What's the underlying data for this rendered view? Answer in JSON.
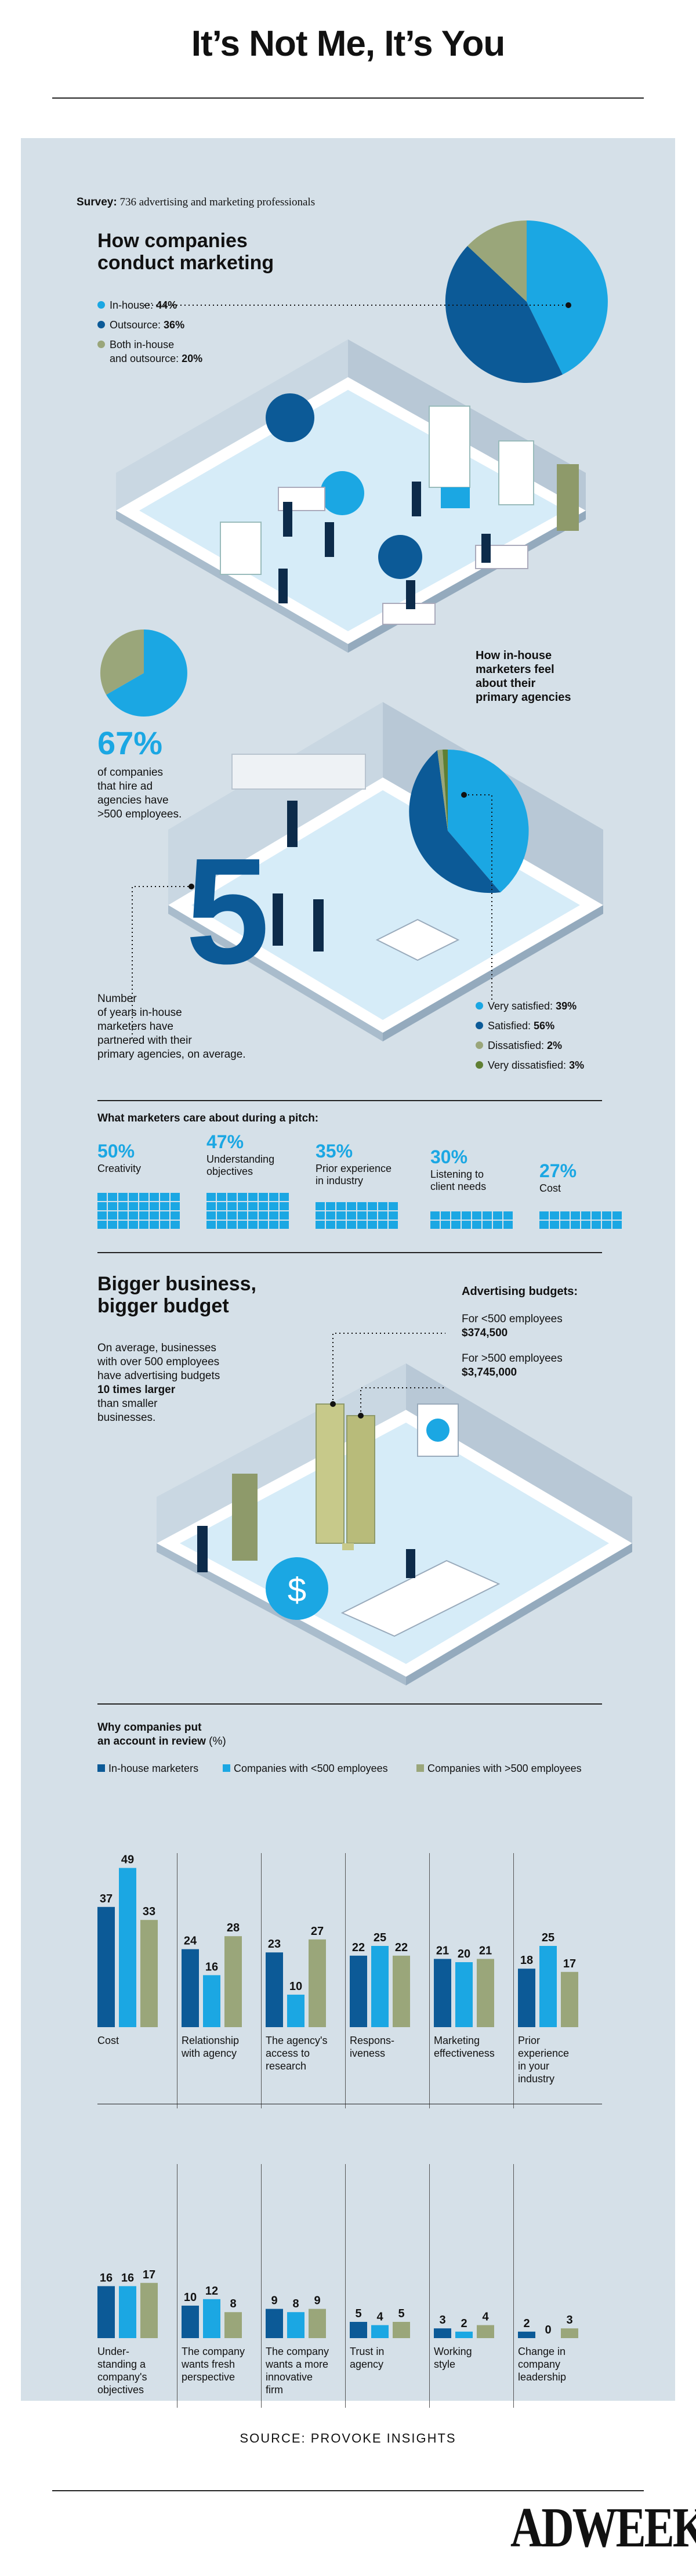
{
  "title": "It’s Not Me, It’s You",
  "survey": {
    "label": "Survey:",
    "text": " 736 advertising and marketing professionals"
  },
  "conduct": {
    "heading_line1": "How companies",
    "heading_line2": "conduct marketing",
    "legend": [
      {
        "label": "In-house: ",
        "value": "44%",
        "color": "#1ba7e3"
      },
      {
        "label": "Outsource: ",
        "value": "36%",
        "color": "#0c5a97"
      },
      {
        "label": "Both in-house",
        "label2": "and outsource: ",
        "value": "20%",
        "color": "#9aa67a"
      }
    ]
  },
  "stat67": {
    "value": "67%",
    "line1": "of companies",
    "line2": "that hire ad",
    "line3": "agencies have",
    "line4": ">500 employees."
  },
  "years": {
    "number": "5",
    "line1": "Number",
    "line2": "of years in-house",
    "line3": "marketers have",
    "line4": "partnered with their",
    "line5": "primary agencies, on average."
  },
  "feel": {
    "line1": "How in-house",
    "line2": "marketers feel",
    "line3": "about their",
    "line4": "primary agencies",
    "legend": [
      {
        "label": "Very satisfied: ",
        "value": "39%",
        "color": "#1ba7e3"
      },
      {
        "label": "Satisfied: ",
        "value": "56%",
        "color": "#0c5a97"
      },
      {
        "label": "Dissatisfied: ",
        "value": "2%",
        "color": "#9aa67a"
      },
      {
        "label": "Very dissatisfied: ",
        "value": "3%",
        "color": "#5f7f33"
      }
    ]
  },
  "pitch": {
    "heading": "What marketers care about during a pitch:",
    "items": [
      {
        "pct": "50%",
        "line1": "Creativity",
        "line2": ""
      },
      {
        "pct": "47%",
        "line1": "Understanding",
        "line2": "objectives"
      },
      {
        "pct": "35%",
        "line1": "Prior experience",
        "line2": "in industry"
      },
      {
        "pct": "30%",
        "line1": "Listening to",
        "line2": "client needs"
      },
      {
        "pct": "27%",
        "line1": "Cost",
        "line2": ""
      }
    ]
  },
  "budget": {
    "heading_line1": "Bigger business,",
    "heading_line2": "bigger budget",
    "desc1": "On average, businesses",
    "desc2": "with over 500 employees",
    "desc3": "have advertising budgets",
    "desc4": "10 times larger",
    "desc5": "than smaller",
    "desc6": "businesses.",
    "ad_heading": "Advertising budgets:",
    "small_label": "For <500 employees",
    "small_value": "$374,500",
    "large_label": "For >500 employees",
    "large_value": "$3,745,000",
    "dollar": "$"
  },
  "review": {
    "heading_line1": "Why companies put",
    "heading_line2": "an account in review",
    "unit": " (%)",
    "legend": [
      "In-house marketers",
      "Companies with <500 employees",
      "Companies with >500 employees"
    ]
  },
  "chart_data": {
    "type": "bar",
    "title": "Why companies put an account in review (%)",
    "series": [
      {
        "name": "In-house marketers",
        "color": "#0c5a97",
        "values": [
          37,
          24,
          23,
          22,
          21,
          18,
          16,
          10,
          9,
          5,
          3,
          2
        ]
      },
      {
        "name": "Companies with <500 employees",
        "color": "#1ba7e3",
        "values": [
          49,
          16,
          10,
          25,
          20,
          25,
          16,
          12,
          8,
          4,
          2,
          0
        ]
      },
      {
        "name": "Companies with >500 employees",
        "color": "#9aa67a",
        "values": [
          33,
          28,
          27,
          22,
          21,
          17,
          17,
          8,
          9,
          5,
          4,
          3
        ]
      }
    ],
    "categories": [
      [
        "Cost"
      ],
      [
        "Relationship",
        "with agency"
      ],
      [
        "The agency's",
        "access to",
        "research"
      ],
      [
        "Respons-",
        "iveness"
      ],
      [
        "Marketing",
        "effectiveness"
      ],
      [
        "Prior",
        "experience",
        "in your",
        "industry"
      ],
      [
        "Under-",
        "standing a",
        "company's",
        "objectives"
      ],
      [
        "The company",
        "wants fresh",
        "perspective"
      ],
      [
        "The company",
        "wants a more",
        "innovative",
        "firm"
      ],
      [
        "Trust in",
        "agency"
      ],
      [
        "Working",
        "style"
      ],
      [
        "Change in",
        "company",
        "leadership"
      ]
    ]
  },
  "source": "SOURCE: PROVOKE INSIGHTS",
  "brand": "ADWEEK"
}
